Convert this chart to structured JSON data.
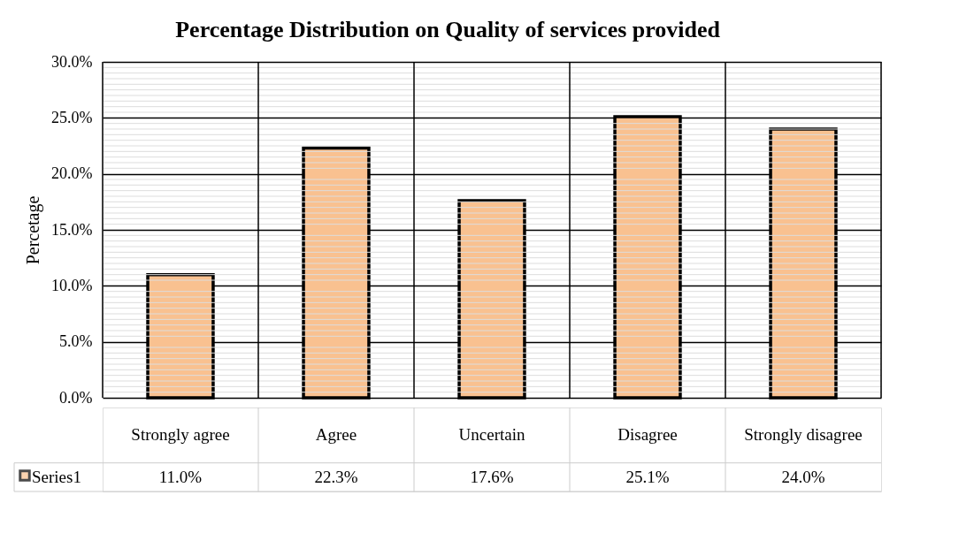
{
  "chart_data": {
    "type": "bar",
    "title": "Percentage Distribution on Quality of services provided",
    "ylabel": "Percetage",
    "categories": [
      "Strongly agree",
      "Agree",
      "Uncertain",
      "Disagree",
      "Strongly disagree"
    ],
    "series": [
      {
        "name": "Series1",
        "color": "#f9c190",
        "values": [
          11.0,
          22.3,
          17.6,
          25.1,
          24.0
        ],
        "value_labels": [
          "11.0%",
          "22.3%",
          "17.6%",
          "25.1%",
          "24.0%"
        ]
      }
    ],
    "ylim": [
      0,
      30
    ],
    "yticks": [
      {
        "value": 0,
        "label": "0.0%"
      },
      {
        "value": 5,
        "label": "5.0%"
      },
      {
        "value": 10,
        "label": "10.0%"
      },
      {
        "value": 15,
        "label": "15.0%"
      },
      {
        "value": 20,
        "label": "20.0%"
      },
      {
        "value": 25,
        "label": "25.0%"
      },
      {
        "value": 30,
        "label": "30.0%"
      }
    ],
    "grid": true,
    "legend": "bottom"
  }
}
